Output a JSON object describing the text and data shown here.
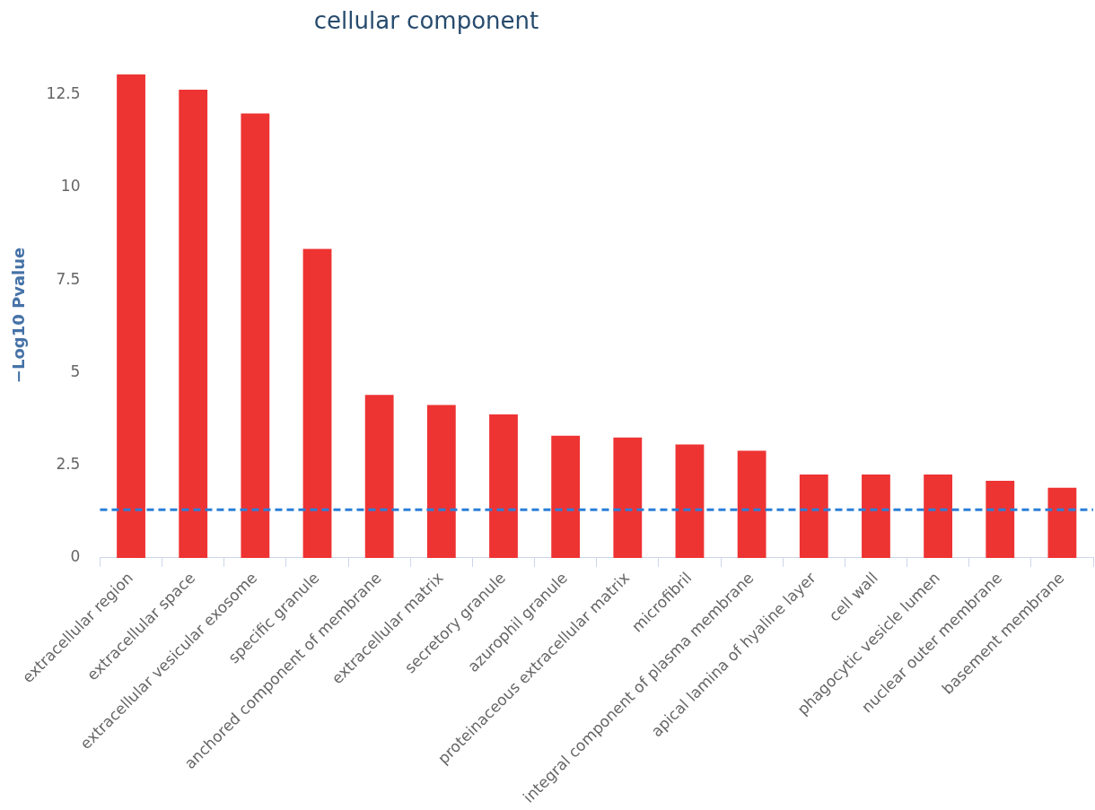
{
  "chart_data": {
    "type": "bar",
    "title": "cellular component",
    "ylabel": "−Log10 Pvalue",
    "categories": [
      "extracellular region",
      "extracellular space",
      "extracellular vesicular exosome",
      "specific granule",
      "anchored component of membrane",
      "extracellular matrix",
      "secretory granule",
      "azurophil granule",
      "proteinaceous extracellular matrix",
      "microfibril",
      "integral component of plasma membrane",
      "apical lamina of hyaline layer",
      "cell wall",
      "phagocytic vesicle lumen",
      "nuclear outer membrane",
      "basement membrane"
    ],
    "values": [
      13.05,
      12.64,
      12.0,
      8.34,
      4.4,
      4.13,
      3.87,
      3.3,
      3.25,
      3.06,
      2.89,
      2.25,
      2.25,
      2.25,
      2.08,
      1.89
    ],
    "color": "#ee3333",
    "ylim": [
      0,
      13.1
    ],
    "yticks": [
      0,
      {
        "value": 2.5,
        "label": "2.5"
      },
      5,
      {
        "value": 7.5,
        "label": "7.5"
      },
      10,
      {
        "value": 12.5,
        "label": "12.5"
      }
    ],
    "grid": false,
    "legend": false,
    "ref_lines": [
      {
        "axis": "y",
        "value": 1.3,
        "color": "#2b7fd8",
        "line_style": "dashed"
      }
    ]
  }
}
